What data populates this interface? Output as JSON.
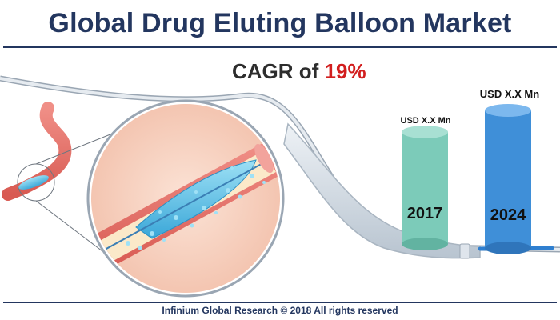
{
  "header": {
    "title": "Global Drug Eluting Balloon Market"
  },
  "cagr": {
    "prefix": "CAGR of ",
    "value": "19%"
  },
  "bars": [
    {
      "year": "2017",
      "label": "USD X.X Mn",
      "color": "#7ccbb9"
    },
    {
      "year": "2024",
      "label": "USD X.X Mn",
      "color": "#3f8fd8"
    }
  ],
  "footer": {
    "text": "Infinium Global Research © 2018 All rights reserved"
  },
  "colors": {
    "title": "#23365f",
    "accent": "#d21e1e",
    "vessel": "#e8736c",
    "balloon": "#5ec2e8"
  }
}
